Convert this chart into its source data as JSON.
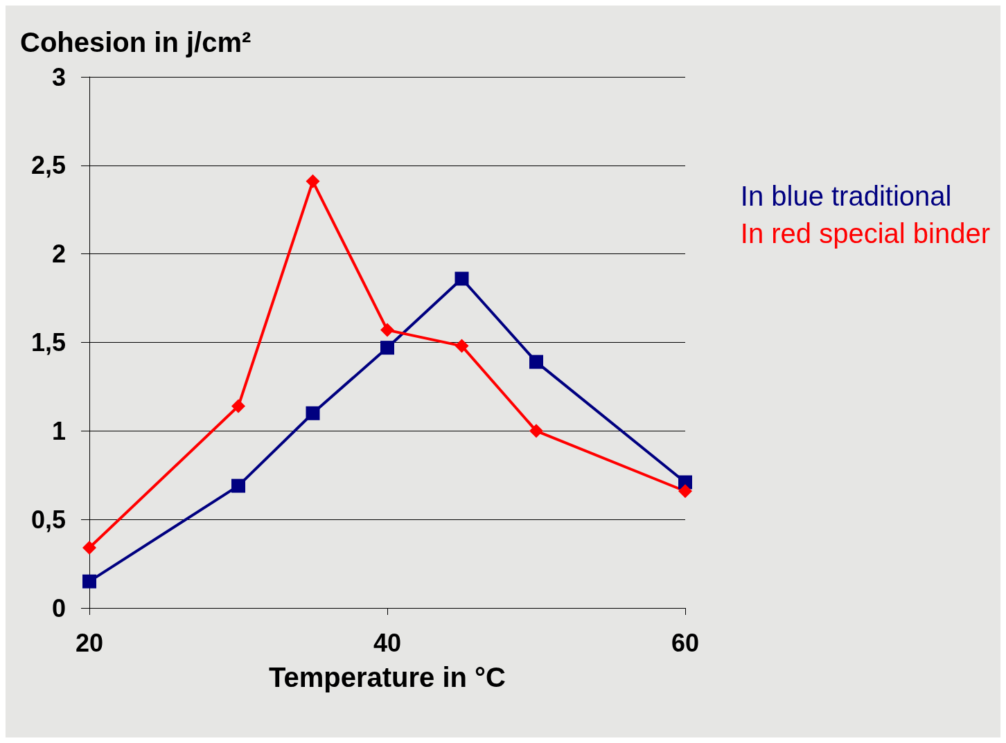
{
  "chart_data": {
    "type": "line",
    "ylabel": "Cohesion in j/cm²",
    "xlabel": "Temperature in °C",
    "x": [
      20,
      30,
      35,
      40,
      45,
      50,
      60
    ],
    "series": [
      {
        "name": "In blue traditional",
        "color": "#000080",
        "marker": "square",
        "values": [
          0.15,
          0.69,
          1.1,
          1.47,
          1.86,
          1.39,
          0.71
        ]
      },
      {
        "name": "In red special binder",
        "color": "#ff0000",
        "marker": "diamond",
        "values": [
          0.34,
          1.14,
          2.41,
          1.57,
          1.48,
          1.0,
          0.66
        ]
      }
    ],
    "xlim": [
      20,
      60
    ],
    "xticks": [
      20,
      40,
      60
    ],
    "ylim": [
      0,
      3
    ],
    "yticks": [
      0,
      {
        "value": 0.5,
        "label": "0,5"
      },
      1,
      {
        "value": 1.5,
        "label": "1,5"
      },
      2,
      {
        "value": 2.5,
        "label": "2,5"
      },
      3
    ],
    "grid": "y",
    "legend": "right"
  }
}
